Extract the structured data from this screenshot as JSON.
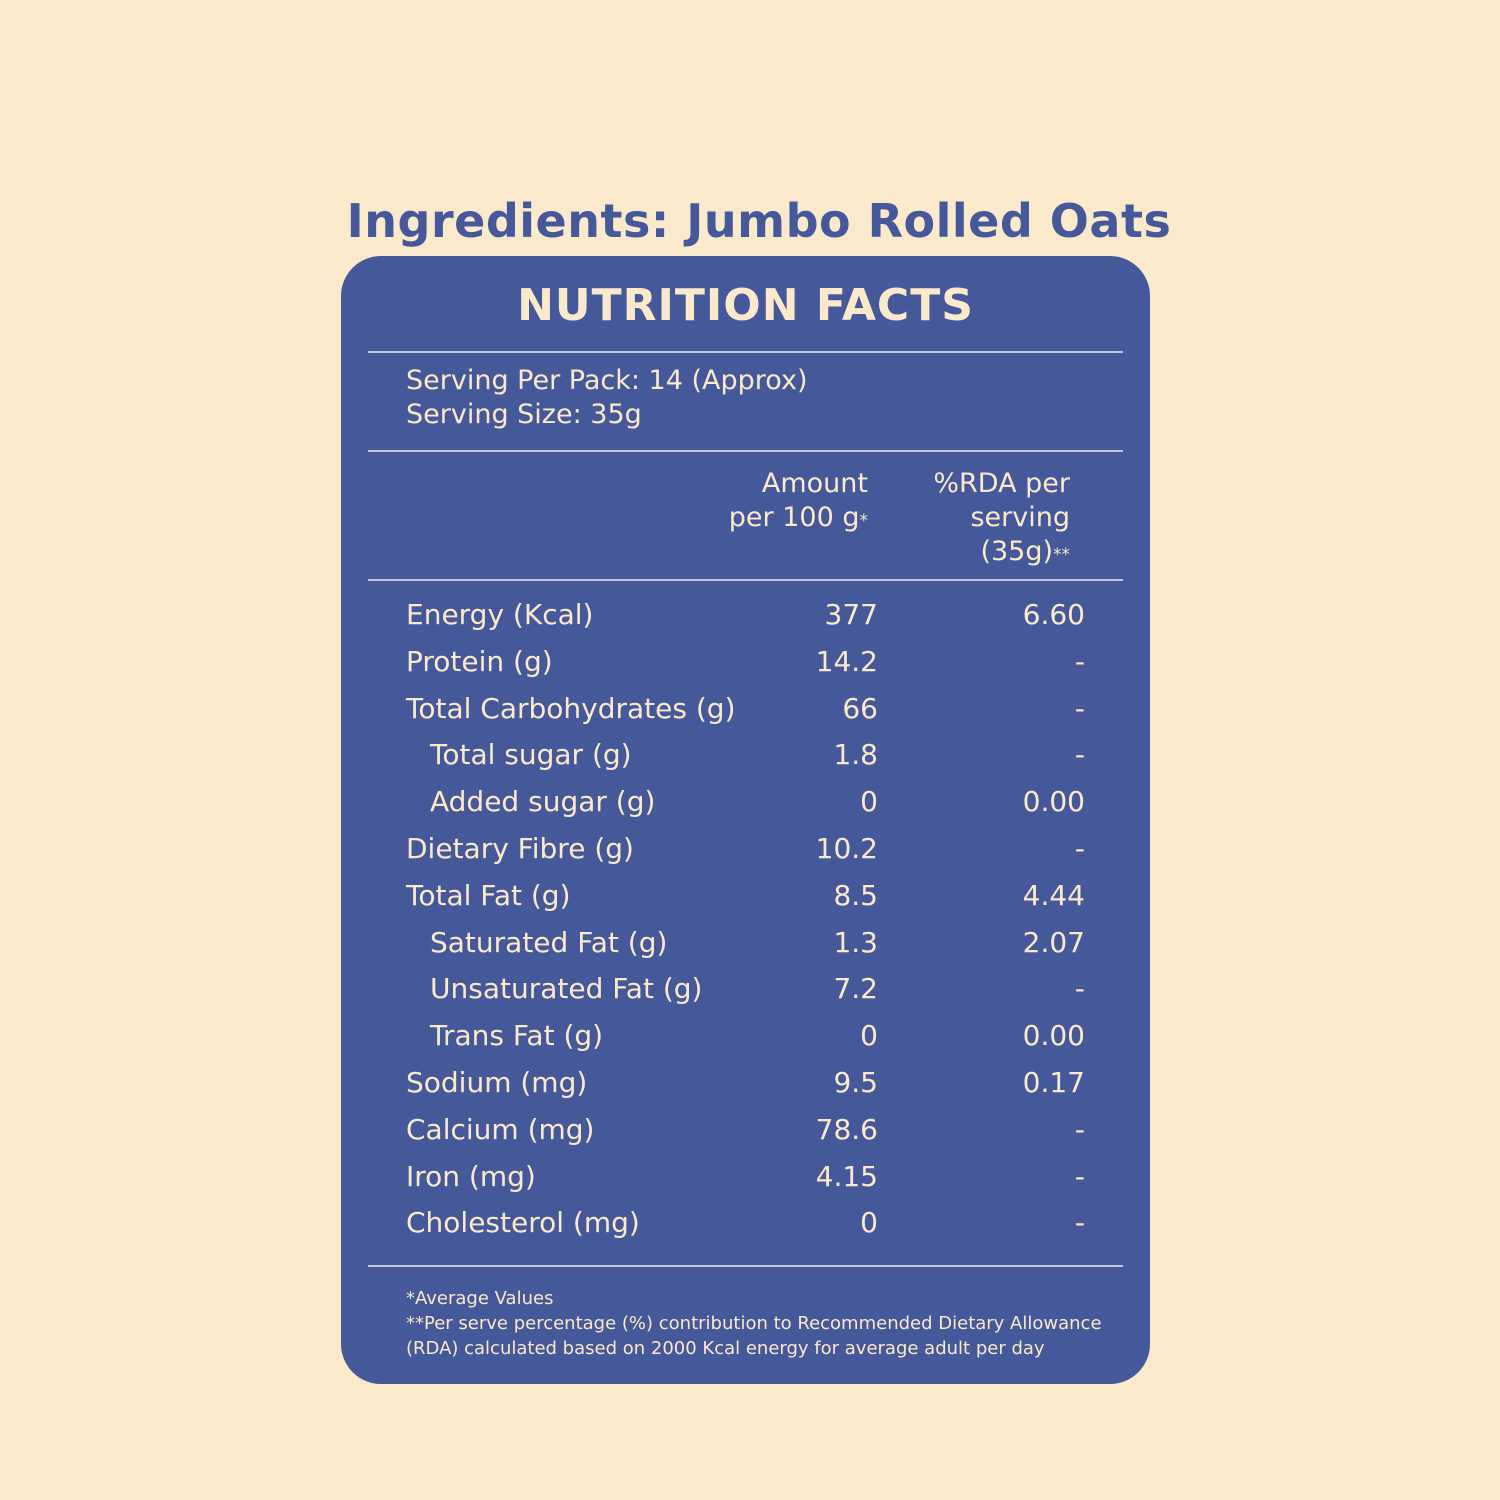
{
  "ingredients": {
    "heading": "Ingredients: Jumbo Rolled Oats"
  },
  "panel": {
    "title": "NUTRITION FACTS",
    "serving_per_pack": "Serving Per Pack: 14 (Approx)",
    "serving_size": "Serving Size: 35g",
    "columns": {
      "amount_line1": "Amount",
      "amount_line2": "per 100 g",
      "amount_mark": "*",
      "rda_line1": "%RDA per",
      "rda_line2": "serving",
      "rda_line3": "(35g)",
      "rda_mark": "**"
    },
    "rows": [
      {
        "label": "Energy (Kcal)",
        "amount": "377",
        "rda": "6.60",
        "indent": false
      },
      {
        "label": "Protein (g)",
        "amount": "14.2",
        "rda": "-",
        "indent": false
      },
      {
        "label": "Total Carbohydrates (g)",
        "amount": "66",
        "rda": "-",
        "indent": false
      },
      {
        "label": "Total sugar (g)",
        "amount": "1.8",
        "rda": "-",
        "indent": true
      },
      {
        "label": "Added sugar (g)",
        "amount": "0",
        "rda": "0.00",
        "indent": true
      },
      {
        "label": "Dietary Fibre (g)",
        "amount": "10.2",
        "rda": "-",
        "indent": false
      },
      {
        "label": "Total Fat (g)",
        "amount": "8.5",
        "rda": "4.44",
        "indent": false
      },
      {
        "label": "Saturated Fat (g)",
        "amount": "1.3",
        "rda": "2.07",
        "indent": true
      },
      {
        "label": "Unsaturated Fat (g)",
        "amount": "7.2",
        "rda": "-",
        "indent": true
      },
      {
        "label": "Trans Fat (g)",
        "amount": "0",
        "rda": "0.00",
        "indent": true
      },
      {
        "label": "Sodium (mg)",
        "amount": "9.5",
        "rda": "0.17",
        "indent": false
      },
      {
        "label": "Calcium (mg)",
        "amount": "78.6",
        "rda": "-",
        "indent": false
      },
      {
        "label": "Iron (mg)",
        "amount": "4.15",
        "rda": "-",
        "indent": false
      },
      {
        "label": "Cholesterol (mg)",
        "amount": "0",
        "rda": "-",
        "indent": false
      }
    ],
    "footnotes": {
      "line1": "*Average Values",
      "line2": "**Per serve percentage (%) contribution to Recommended Dietary Allowance",
      "line3": "(RDA) calculated based on 2000 Kcal energy for average adult per day"
    }
  },
  "colors": {
    "background": "#fae9cb",
    "panel": "#44589a",
    "text_light": "#fae9cb",
    "heading": "#44589a"
  }
}
